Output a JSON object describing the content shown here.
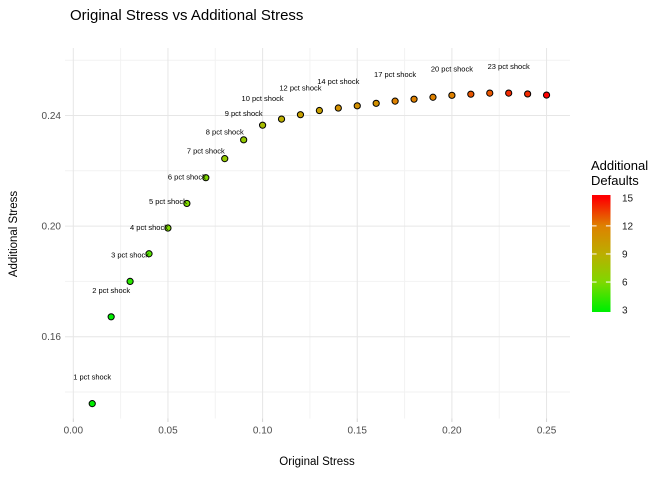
{
  "title": "Original Stress vs Additional Stress",
  "axes": {
    "x_label": "Original Stress",
    "y_label": "Additional Stress",
    "x_ticks": [
      0,
      0.05,
      0.1,
      0.15,
      0.2,
      0.25
    ],
    "x_tick_labels": [
      "0.00",
      "0.05",
      "0.10",
      "0.15",
      "0.20",
      "0.25"
    ],
    "x_minor": [
      0.025,
      0.075,
      0.125,
      0.175,
      0.225
    ],
    "y_ticks": [
      0.16,
      0.2,
      0.24
    ],
    "y_tick_labels": [
      "0.16",
      "0.20",
      "0.24"
    ],
    "y_minor": [
      0.14,
      0.18,
      0.22,
      0.26
    ]
  },
  "legend": {
    "title_line1": "Additional",
    "title_line2": "Defaults",
    "tick_values": [
      15,
      12,
      9,
      6,
      3
    ],
    "tick_labels": [
      "15",
      "12",
      "9",
      "6",
      "3"
    ],
    "bar_tick_values": [
      12,
      9,
      6
    ],
    "gradient": [
      {
        "v": 3,
        "color": "#00EE00"
      },
      {
        "v": 6,
        "color": "#7FD800"
      },
      {
        "v": 9,
        "color": "#BBAE00"
      },
      {
        "v": 12,
        "color": "#DE8100"
      },
      {
        "v": 15,
        "color": "#FE0000"
      }
    ]
  },
  "colors": {
    "grid_major": "#E6E6E6",
    "grid_minor": "#F2F2F2",
    "axis_tick": "#D4D4D4",
    "tick_text": "#4D4D4D",
    "point_stroke": "#000000",
    "label_text": "#000000",
    "legend_text": "#1A1A1A",
    "background": "#FFFFFF"
  },
  "chart_data": {
    "type": "scatter",
    "title": "Original Stress vs Additional Stress",
    "xlabel": "Original Stress",
    "ylabel": "Additional Stress",
    "xlim": [
      0,
      0.257
    ],
    "ylim": [
      0.13,
      0.265
    ],
    "grid": "on",
    "legend_position": "right",
    "color_scale": {
      "name": "Additional Defaults",
      "low": "green",
      "high": "red",
      "min": 3,
      "max": 15
    },
    "points": [
      {
        "x": 0.01,
        "y": 0.1358,
        "defaults": 3,
        "label": "1 pct shock"
      },
      {
        "x": 0.02,
        "y": 0.1672,
        "defaults": 3,
        "label": "2 pct shock"
      },
      {
        "x": 0.03,
        "y": 0.18,
        "defaults": 4,
        "label": "3 pct shock"
      },
      {
        "x": 0.04,
        "y": 0.19,
        "defaults": 5,
        "label": "4 pct shock"
      },
      {
        "x": 0.05,
        "y": 0.1993,
        "defaults": 6,
        "label": "5 pct shock"
      },
      {
        "x": 0.06,
        "y": 0.2082,
        "defaults": 6,
        "label": "6 pct shock"
      },
      {
        "x": 0.07,
        "y": 0.2175,
        "defaults": 6,
        "label": "7 pct shock"
      },
      {
        "x": 0.08,
        "y": 0.2244,
        "defaults": 7,
        "label": "8 pct shock"
      },
      {
        "x": 0.09,
        "y": 0.2312,
        "defaults": 7,
        "label": "9 pct shock"
      },
      {
        "x": 0.1,
        "y": 0.2365,
        "defaults": 8,
        "label": "10 pct shock"
      },
      {
        "x": 0.11,
        "y": 0.2387,
        "defaults": 9,
        "label": null
      },
      {
        "x": 0.12,
        "y": 0.2403,
        "defaults": 10,
        "label": "12 pct shock"
      },
      {
        "x": 0.13,
        "y": 0.2418,
        "defaults": 10,
        "label": null
      },
      {
        "x": 0.14,
        "y": 0.2427,
        "defaults": 11,
        "label": "14 pct shock"
      },
      {
        "x": 0.15,
        "y": 0.2435,
        "defaults": 11,
        "label": null
      },
      {
        "x": 0.16,
        "y": 0.2444,
        "defaults": 11,
        "label": null
      },
      {
        "x": 0.17,
        "y": 0.2452,
        "defaults": 12,
        "label": "17 pct shock"
      },
      {
        "x": 0.18,
        "y": 0.2459,
        "defaults": 12,
        "label": null
      },
      {
        "x": 0.19,
        "y": 0.2466,
        "defaults": 12,
        "label": null
      },
      {
        "x": 0.2,
        "y": 0.2473,
        "defaults": 12,
        "label": "20 pct shock"
      },
      {
        "x": 0.21,
        "y": 0.2477,
        "defaults": 13,
        "label": null
      },
      {
        "x": 0.22,
        "y": 0.2481,
        "defaults": 13,
        "label": null
      },
      {
        "x": 0.23,
        "y": 0.2481,
        "defaults": 14,
        "label": "23 pct shock"
      },
      {
        "x": 0.24,
        "y": 0.2478,
        "defaults": 14,
        "label": null
      },
      {
        "x": 0.25,
        "y": 0.2474,
        "defaults": 15,
        "label": null
      }
    ]
  }
}
